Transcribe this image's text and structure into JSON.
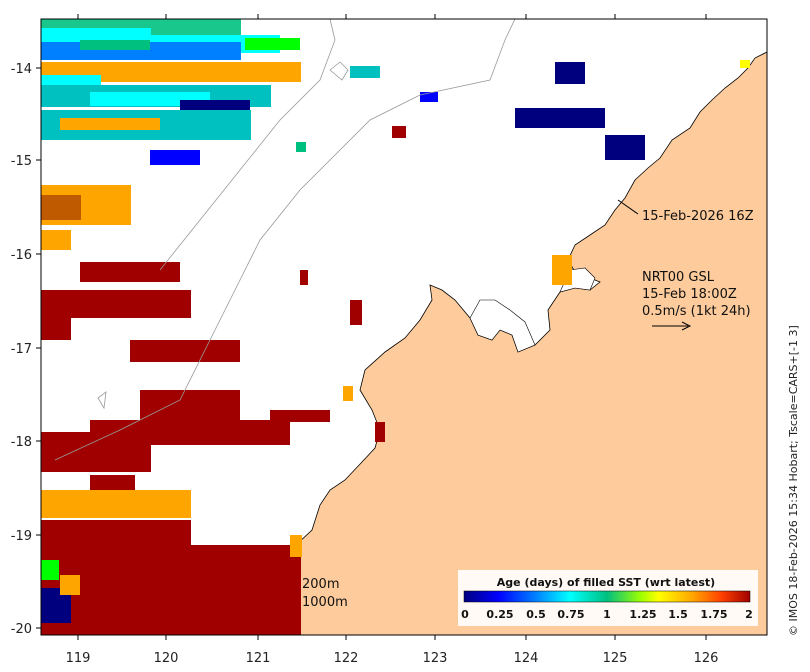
{
  "map": {
    "x_ticks": [
      "119",
      "120",
      "121",
      "122",
      "123",
      "124",
      "125",
      "126"
    ],
    "y_ticks": [
      "-14",
      "-15",
      "-16",
      "-17",
      "-18",
      "-19",
      "-20"
    ],
    "land_color": "#fdcb9c",
    "sea_color": "#ffffff"
  },
  "annotations": {
    "timestamp": "15-Feb-2026 16Z",
    "product": "NRT00 GSL",
    "valid_time": "15-Feb 18:00Z",
    "vector_scale": "0.5m/s (1kt 24h)",
    "contour_200": "200m",
    "contour_1000": "1000m"
  },
  "colorbar": {
    "title": "Age (days) of filled SST (wrt latest)",
    "ticks": [
      "0",
      "0.25",
      "0.5",
      "0.75",
      "1",
      "1.25",
      "1.5",
      "1.75",
      "2"
    ],
    "colors": [
      "#00007f",
      "#0000ff",
      "#0080ff",
      "#00ffff",
      "#00c080",
      "#00ff00",
      "#ffff00",
      "#ffa500",
      "#ff4000",
      "#a00000"
    ]
  },
  "credit": "© IMOS 18-Feb-2026 15:34 Hobart; Tscale=CARS+[-1 3]"
}
